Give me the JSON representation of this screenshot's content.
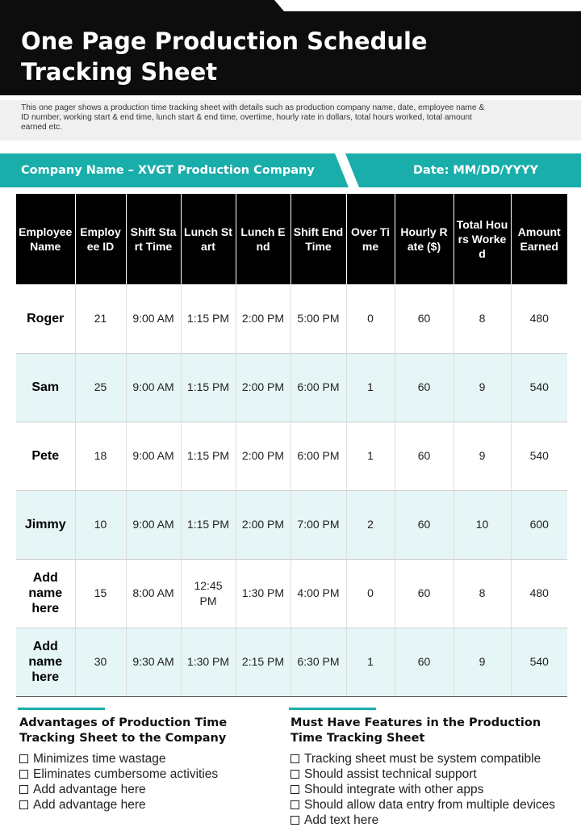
{
  "title_line1": "One Page Production Schedule",
  "title_line2": "Tracking Sheet",
  "description": "This one pager shows a production time tracking sheet with details such as production company name, date, employee name & ID number, working start & end time, lunch start & end time, overtime, hourly rate in dollars, total hours worked, total amount earned etc.",
  "company_label": "Company Name – XVGT Production Company",
  "date_label": "Date: MM/DD/YYYY",
  "colors": {
    "header": "#0d0d0d",
    "accent": "#1aaeab",
    "row_alt": "#e6f5f5"
  },
  "table": {
    "headers": [
      "Employee Name",
      "Employee ID",
      "Shift Start Time",
      "Lunch Start",
      "Lunch End",
      "Shift End Time",
      "Over Time",
      "Hourly Rate ($)",
      "Total Hours Worked",
      "Amount Earned"
    ],
    "rows": [
      [
        "Roger",
        "21",
        "9:00 AM",
        "1:15 PM",
        "2:00 PM",
        "5:00 PM",
        "0",
        "60",
        "8",
        "480"
      ],
      [
        "Sam",
        "25",
        "9:00 AM",
        "1:15 PM",
        "2:00 PM",
        "6:00 PM",
        "1",
        "60",
        "9",
        "540"
      ],
      [
        "Pete",
        "18",
        "9:00 AM",
        "1:15 PM",
        "2:00 PM",
        "6:00 PM",
        "1",
        "60",
        "9",
        "540"
      ],
      [
        "Jimmy",
        "10",
        "9:00 AM",
        "1:15 PM",
        "2:00 PM",
        "7:00 PM",
        "2",
        "60",
        "10",
        "600"
      ],
      [
        "Add name here",
        "15",
        "8:00 AM",
        "12:45 PM",
        "1:30 PM",
        "4:00 PM",
        "0",
        "60",
        "8",
        "480"
      ],
      [
        "Add name here",
        "30",
        "9:30 AM",
        "1:30 PM",
        "2:15 PM",
        "6:30 PM",
        "1",
        "60",
        "9",
        "540"
      ]
    ]
  },
  "advantages": {
    "title_line1": "Advantages of Production Time",
    "title_line2": "Tracking Sheet to the Company",
    "items": [
      "Minimizes time wastage",
      "Eliminates cumbersome activities",
      "Add advantage here",
      "Add advantage here"
    ]
  },
  "features": {
    "title_line1": "Must Have Features in the Production",
    "title_line2": "Time Tracking Sheet",
    "items": [
      "Tracking sheet must be system compatible",
      "Should assist technical support",
      "Should integrate with other apps",
      "Should allow data entry from multiple devices",
      "Add text here"
    ]
  }
}
